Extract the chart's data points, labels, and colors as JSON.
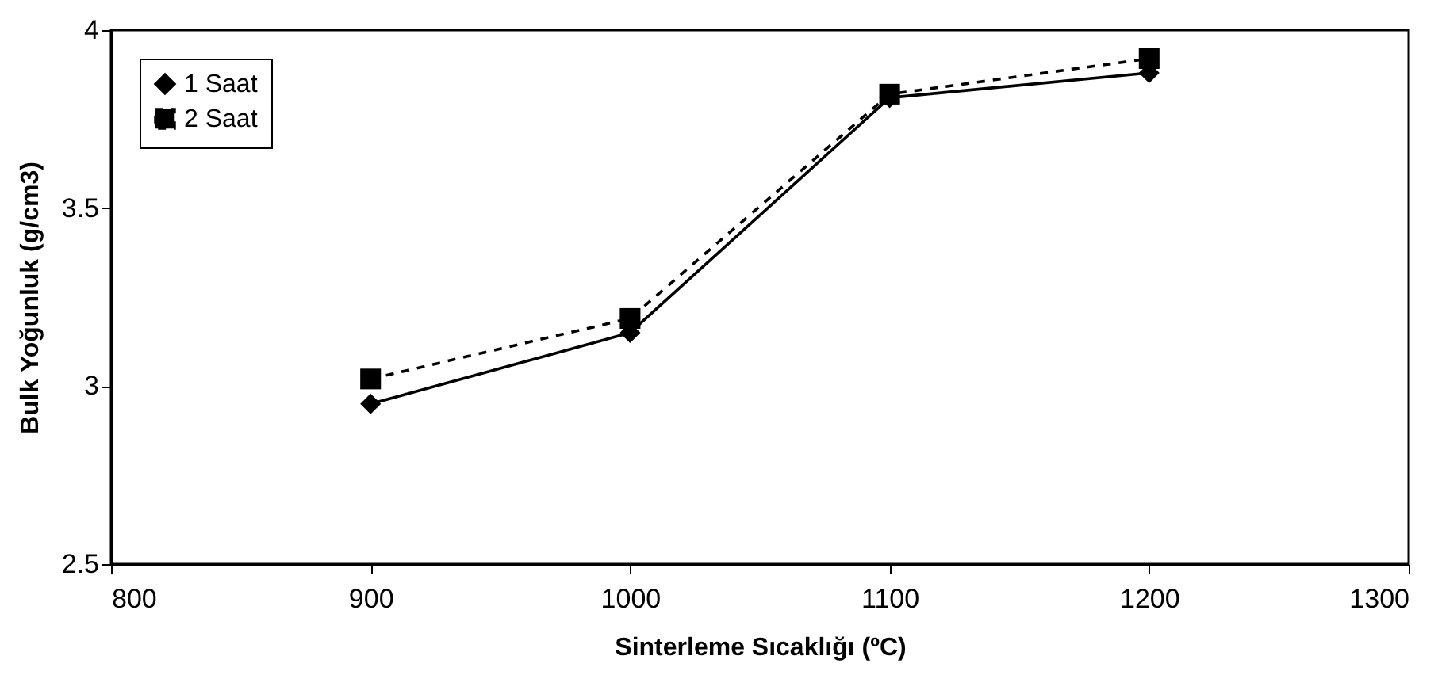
{
  "chart_data": {
    "type": "line",
    "xlabel": "Sinterleme Sıcaklığı (ºC)",
    "ylabel": "Bulk Yoğunluk (g/cm3)",
    "x": [
      900,
      1000,
      1100,
      1200
    ],
    "series": [
      {
        "name": "1 Saat",
        "color": "#000000",
        "values": [
          2.95,
          3.15,
          3.81,
          3.88
        ],
        "marker": "diamond",
        "line_style": "solid"
      },
      {
        "name": "2 Saat",
        "color": "#000000",
        "values": [
          3.02,
          3.19,
          3.82,
          3.92
        ],
        "marker": "square",
        "line_style": "dashed"
      }
    ],
    "xlim": [
      800,
      1300
    ],
    "xticks": [
      800,
      900,
      1000,
      1100,
      1200,
      1300
    ],
    "ylim": [
      2.5,
      4
    ],
    "yticks": [
      2.5,
      3,
      3.5,
      4
    ],
    "grid": false,
    "legend": "top left"
  }
}
